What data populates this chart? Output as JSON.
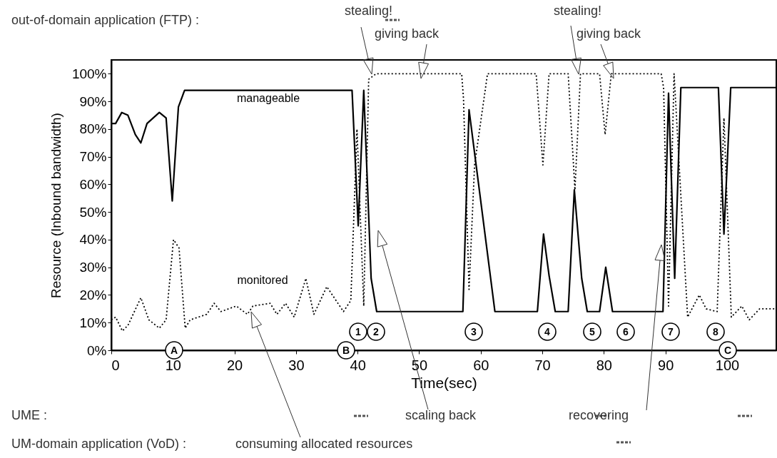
{
  "chart_data": {
    "type": "line",
    "xlabel": "Time(sec)",
    "ylabel": "Resource (Inbound bandwidth)",
    "xlim": [
      0,
      108
    ],
    "ylim": [
      0,
      105
    ],
    "xticks": [
      0,
      10,
      20,
      30,
      40,
      50,
      60,
      70,
      80,
      90,
      100
    ],
    "yticks": [
      {
        "value": 0,
        "label": "0%"
      },
      {
        "value": 10,
        "label": "10%"
      },
      {
        "value": 20,
        "label": "20%"
      },
      {
        "value": 30,
        "label": "30%"
      },
      {
        "value": 40,
        "label": "40%"
      },
      {
        "value": 50,
        "label": "50%"
      },
      {
        "value": 60,
        "label": "60%"
      },
      {
        "value": 70,
        "label": "70%"
      },
      {
        "value": 80,
        "label": "80%"
      },
      {
        "value": 90,
        "label": "90%"
      },
      {
        "value": 100,
        "label": "100%"
      }
    ],
    "series": [
      {
        "name": "manageable",
        "color": "#000000",
        "line_style": "solid",
        "x": [
          0,
          0.7,
          1.7,
          2.7,
          3.9,
          4.8,
          5.8,
          7.8,
          8.9,
          9.9,
          10.9,
          11.9,
          39.1,
          40.1,
          41,
          42.2,
          43.1,
          57.1,
          58.1,
          62.3,
          69.2,
          70.2,
          71.1,
          72.1,
          74.2,
          75.2,
          76.4,
          77.3,
          79.3,
          80.3,
          81.4,
          89.6,
          90.5,
          91.5,
          92.5,
          98.6,
          99.5,
          100.6,
          108
        ],
        "values": [
          82,
          82,
          86,
          85,
          78,
          75,
          82,
          86,
          84,
          54,
          88,
          94,
          94,
          45,
          94,
          26,
          14,
          14,
          87,
          14,
          14,
          42,
          27,
          14,
          14,
          58,
          26,
          14,
          14,
          30,
          14,
          14,
          93,
          26,
          95,
          95,
          42,
          95,
          95
        ]
      },
      {
        "name": "monitored",
        "color": "#000000",
        "line_style": "dotted",
        "x": [
          0,
          0.7,
          1.8,
          2.7,
          4.8,
          6.1,
          7.8,
          8.9,
          10.1,
          11,
          12,
          12.8,
          15.5,
          16.7,
          17.8,
          20.3,
          22.1,
          23,
          25.8,
          26.9,
          28.3,
          29.7,
          31.6,
          32.9,
          35,
          37.7,
          38.9,
          39.9,
          40.4,
          41,
          41.8,
          43,
          56.9,
          57.2,
          58.1,
          59,
          61.1,
          69,
          70.1,
          71.1,
          74.2,
          75.3,
          76.2,
          79.3,
          80.2,
          81.2,
          89.3,
          89.7,
          90.5,
          91.4,
          93.6,
          95.5,
          96.6,
          98.4,
          99.5,
          100.7,
          102.4,
          103.6,
          105.3,
          108
        ],
        "values": [
          11,
          12,
          7,
          9,
          19,
          11,
          8,
          11,
          40,
          37,
          8,
          11,
          13,
          17,
          14,
          16,
          13,
          16,
          17,
          13,
          17,
          12,
          26,
          13,
          23,
          14,
          18,
          80,
          51,
          16,
          98,
          100,
          100,
          91,
          22,
          67,
          100,
          100,
          67,
          100,
          100,
          58,
          100,
          100,
          78,
          100,
          100,
          95,
          16,
          100,
          12,
          20,
          15,
          14,
          84,
          12,
          16,
          11,
          15,
          15
        ]
      }
    ],
    "annotations": [
      "out-of-domain application (FTP) :",
      "stealing!",
      "giving back",
      "stealing!",
      "giving back",
      "UME :",
      "scaling back",
      "recovering",
      "UM-domain application (VoD) :",
      "consuming allocated resources",
      "A",
      "B",
      "C",
      "1",
      "2",
      "3",
      "4",
      "5",
      "6",
      "7",
      "8"
    ]
  }
}
